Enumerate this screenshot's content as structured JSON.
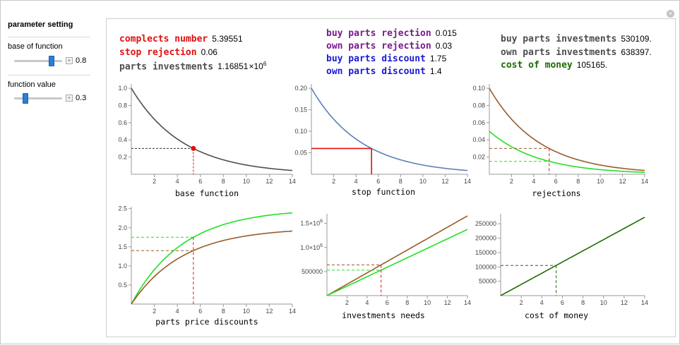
{
  "controls": {
    "title": "parameter setting",
    "base": {
      "label": "base of function",
      "value": "0.8",
      "fraction": 0.76
    },
    "func": {
      "label": "function value",
      "value": "0.3",
      "fraction": 0.23
    }
  },
  "stats": {
    "complects_label": "complects number",
    "complects_value": "5.39551",
    "stop_label": "stop rejection",
    "stop_value": "0.06",
    "parts_inv_label": "parts investments",
    "parts_inv_value": "1.16851",
    "buy_rej_label": "buy parts rejection",
    "buy_rej_value": "0.015",
    "own_rej_label": "own parts rejection",
    "own_rej_value": "0.03",
    "buy_disc_label": "buy parts discount",
    "buy_disc_value": "1.75",
    "own_disc_label": "own parts discount",
    "own_disc_value": "1.4",
    "buy_inv_label": "buy parts investments",
    "buy_inv_value": "530109.",
    "own_inv_label": "own parts investments",
    "own_inv_value": "638397.",
    "money_label": "cost of money",
    "money_value": "105165.",
    "times": "×10",
    "exp": "6"
  },
  "colors": {
    "red": "#e0100f",
    "purple": "#7a1a8c",
    "blue": "#1a1ad6",
    "green": "#1a6b00",
    "gray": "#4d4d4d",
    "bright_green": "#22e022",
    "brown": "#9a5a28",
    "steel": "#5b7fb5"
  },
  "chart_data": [
    {
      "type": "line",
      "xlabel": "base function",
      "xlim": [
        0,
        14
      ],
      "ylim": [
        0,
        1.05
      ],
      "xticks": [
        2,
        4,
        6,
        8,
        10,
        12,
        14
      ],
      "yticks": [
        "0.2",
        "0.4",
        "0.6",
        "0.8",
        "1.0"
      ],
      "series": [
        {
          "formula": "0.8^x",
          "color": "#4d4d4d"
        }
      ],
      "marker": {
        "x": 5.39551,
        "y": 0.3
      }
    },
    {
      "type": "line",
      "xlabel": "stop function",
      "xlim": [
        0,
        14
      ],
      "ylim": [
        0,
        0.21
      ],
      "xticks": [
        2,
        4,
        6,
        8,
        10,
        12,
        14
      ],
      "yticks": [
        "0.05",
        "0.10",
        "0.15",
        "0.20"
      ],
      "series": [
        {
          "formula": "0.2*0.8^x",
          "color": "#5b7fb5"
        }
      ],
      "stop": {
        "x": 5.39551,
        "y": 0.06
      }
    },
    {
      "type": "line",
      "xlabel": "rejections",
      "xlim": [
        0,
        14
      ],
      "ylim": [
        0,
        0.105
      ],
      "xticks": [
        2,
        4,
        6,
        8,
        10,
        12,
        14
      ],
      "yticks": [
        "0.02",
        "0.04",
        "0.06",
        "0.08",
        "0.10"
      ],
      "series": [
        {
          "formula": "0.1*0.8^x",
          "color": "#9a5a28"
        },
        {
          "formula": "0.05*0.8^x",
          "color": "#22e022"
        }
      ],
      "marks": [
        {
          "x": 5.39551,
          "y": 0.03,
          "color": "#9a5a28"
        },
        {
          "x": 5.39551,
          "y": 0.015,
          "color": "#22e022"
        }
      ]
    },
    {
      "type": "line",
      "xlabel": "parts price discounts",
      "xlim": [
        0,
        14
      ],
      "ylim": [
        0,
        2.55
      ],
      "xticks": [
        2,
        4,
        6,
        8,
        10,
        12,
        14
      ],
      "yticks": [
        "0.5",
        "1.0",
        "1.5",
        "2.0",
        "2.5"
      ],
      "series": [
        {
          "formula": "2.5*(1-0.8^x)",
          "color": "#22e022"
        },
        {
          "formula": "2*(1-0.8^x)",
          "color": "#9a5a28"
        }
      ],
      "marks": [
        {
          "x": 5.39551,
          "y": 1.75,
          "color": "#22e022"
        },
        {
          "x": 5.39551,
          "y": 1.4,
          "color": "#9a5a28"
        }
      ]
    },
    {
      "type": "line",
      "xlabel": "investments needs",
      "xlim": [
        0,
        14
      ],
      "ylim": [
        0,
        1700000
      ],
      "xticks": [
        2,
        4,
        6,
        8,
        10,
        12,
        14
      ],
      "yticks": [
        "500000",
        "1.0×10",
        "1.5×10"
      ],
      "ytick_exp": "6",
      "series": [
        {
          "formula": "118320*x",
          "color": "#9a5a28"
        },
        {
          "formula": "98250*x",
          "color": "#22e022"
        }
      ],
      "marks": [
        {
          "x": 5.39551,
          "y": 638397,
          "color": "#9a5a28"
        },
        {
          "x": 5.39551,
          "y": 530109,
          "color": "#22e022"
        }
      ]
    },
    {
      "type": "line",
      "xlabel": "cost of money",
      "xlim": [
        0,
        14
      ],
      "ylim": [
        0,
        285000
      ],
      "xticks": [
        2,
        4,
        6,
        8,
        10,
        12,
        14
      ],
      "yticks": [
        "50000",
        "100000",
        "150000",
        "200000",
        "250000"
      ],
      "series": [
        {
          "formula": "19491*x",
          "color": "#1a6b00"
        }
      ],
      "marks": [
        {
          "x": 5.39551,
          "y": 105165,
          "color": "#1a6b00"
        }
      ]
    }
  ]
}
